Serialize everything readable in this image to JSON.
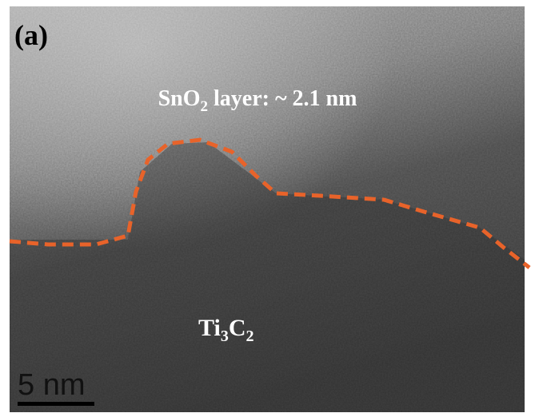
{
  "panel_label": "(a)",
  "layer_label": {
    "parts": [
      "SnO",
      "2",
      " layer: ~ 2.1 nm"
    ]
  },
  "substrate_label": {
    "parts": [
      "Ti",
      "3",
      "C",
      "2"
    ]
  },
  "scale_bar": {
    "label": "5 nm"
  }
}
